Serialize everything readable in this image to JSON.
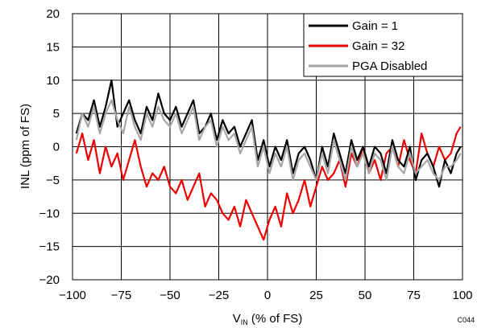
{
  "chart_data": {
    "type": "line",
    "xlabel": "V",
    "xlabel_sub": "IN",
    "xlabel_tail": " (% of FS)",
    "ylabel": "INL (ppm of FS)",
    "xlim": [
      -100,
      100
    ],
    "ylim": [
      -20,
      20
    ],
    "x_ticks": [
      -100,
      -75,
      -50,
      -25,
      0,
      25,
      50,
      75,
      100
    ],
    "y_ticks": [
      -20,
      -15,
      -10,
      -5,
      0,
      5,
      10,
      15,
      20
    ],
    "x_tick_labels": [
      "−100",
      "−75",
      "−50",
      "−25",
      "0",
      "25",
      "50",
      "75",
      "100"
    ],
    "y_tick_labels": [
      "−20",
      "−15",
      "−10",
      "−5",
      "0",
      "5",
      "10",
      "15",
      "20"
    ],
    "grid": true,
    "legend_position": "top-right",
    "figure_code": "C044",
    "x": [
      -98,
      -95,
      -92,
      -89,
      -86,
      -83,
      -80,
      -77,
      -74,
      -71,
      -68,
      -65,
      -62,
      -59,
      -56,
      -53,
      -50,
      -47,
      -44,
      -41,
      -38,
      -35,
      -32,
      -29,
      -26,
      -23,
      -20,
      -17,
      -14,
      -11,
      -8,
      -5,
      -2,
      1,
      4,
      7,
      10,
      13,
      16,
      19,
      22,
      25,
      28,
      31,
      34,
      37,
      40,
      43,
      46,
      49,
      52,
      55,
      58,
      61,
      64,
      67,
      70,
      73,
      76,
      79,
      82,
      85,
      88,
      91,
      94,
      97,
      99
    ],
    "series": [
      {
        "name": "Gain = 1",
        "color": "#000000",
        "values": [
          2,
          5,
          4,
          7,
          3,
          6,
          10,
          3,
          5,
          7,
          4,
          2,
          6,
          4,
          8,
          5,
          4,
          6,
          3,
          5,
          7,
          2,
          3,
          5,
          1,
          4,
          2,
          3,
          0,
          2,
          4,
          -2,
          1,
          -3,
          0,
          -2,
          1,
          -4,
          -1,
          0,
          -2,
          -5,
          0,
          -3,
          2,
          -1,
          -4,
          1,
          -2,
          0,
          -3,
          0,
          -1,
          -4,
          1,
          -2,
          -3,
          0,
          -5,
          -2,
          -1,
          -3,
          -6,
          -2,
          -4,
          -1,
          0
        ]
      },
      {
        "name": "Gain = 32",
        "color": "#ee0000",
        "values": [
          -1,
          2,
          -2,
          1,
          -4,
          0,
          -3,
          -1,
          -5,
          -2,
          1,
          -3,
          -6,
          -4,
          -5,
          -3,
          -6,
          -7,
          -5,
          -8,
          -6,
          -4,
          -9,
          -7,
          -8,
          -10,
          -11,
          -9,
          -12,
          -8,
          -10,
          -12,
          -14,
          -11,
          -9,
          -12,
          -7,
          -10,
          -8,
          -5,
          -9,
          -6,
          -3,
          -5,
          -4,
          -2,
          -6,
          -1,
          -3,
          0,
          -4,
          -2,
          -5,
          -1,
          0,
          -3,
          1,
          -2,
          -4,
          2,
          -1,
          -3,
          0,
          -2,
          -1,
          2,
          3
        ]
      },
      {
        "name": "PGA Disabled",
        "color": "#a6a6a6",
        "values": [
          1,
          5,
          3,
          6,
          2,
          5,
          7,
          4,
          2,
          6,
          3,
          1,
          5,
          3,
          6,
          4,
          3,
          5,
          2,
          4,
          6,
          1,
          3,
          4,
          0,
          3,
          1,
          2,
          -1,
          1,
          3,
          -3,
          0,
          -4,
          -1,
          -3,
          0,
          -5,
          -2,
          -1,
          -3,
          -5,
          -1,
          -4,
          1,
          -2,
          -5,
          0,
          -3,
          -1,
          -4,
          -1,
          -2,
          -5,
          0,
          -3,
          -4,
          -1,
          -4,
          -3,
          -2,
          -4,
          -5,
          -3,
          -3,
          -2,
          -1
        ]
      }
    ]
  }
}
